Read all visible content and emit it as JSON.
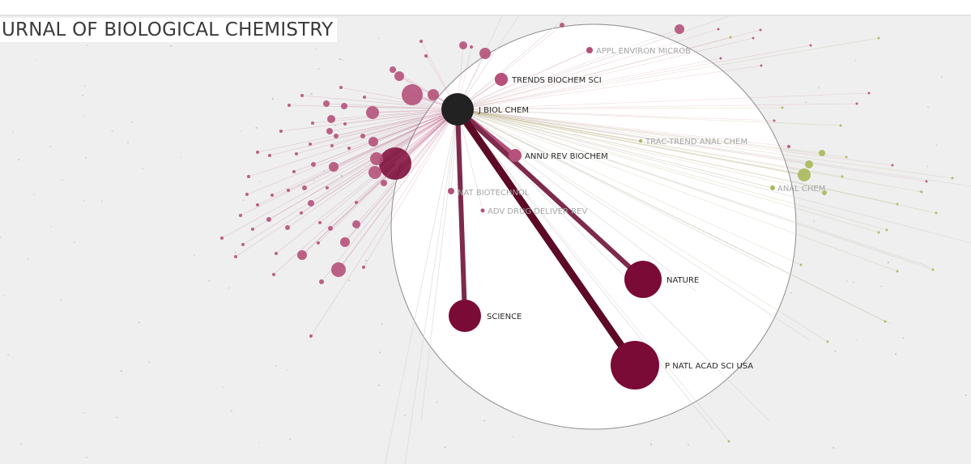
{
  "journal_title": "URNAL OF BIOLOGICAL CHEMISTRY",
  "focus": {
    "label": "J BIOL CHEM",
    "node_name": "focus-node-j-biol-chem",
    "color": "#222222"
  },
  "colors": {
    "citing_cluster": "#b5517a",
    "cited_major": "#7a0a36",
    "chemistry_cluster": "#a8b85a",
    "faint": "#aaaaaa",
    "lens_circle": "#ffffff"
  },
  "labelled_journals": [
    {
      "label": "APPL ENVIRON MICROB",
      "name": "node-appl-environ-microb"
    },
    {
      "label": "TRENDS BIOCHEM SCI",
      "name": "node-trends-biochem-sci"
    },
    {
      "label": "TRAC-TREND ANAL CHEM",
      "name": "node-trac-trend-anal-chem"
    },
    {
      "label": "ANNU REV BIOCHEM",
      "name": "node-annu-rev-biochem"
    },
    {
      "label": "ANAL CHEM",
      "name": "node-anal-chem"
    },
    {
      "label": "NAT BIOTECHNOL",
      "name": "node-nat-biotechnol"
    },
    {
      "label": "ADV DRUG DELIVER REV",
      "name": "node-adv-drug-deliver-rev"
    },
    {
      "label": "NATURE",
      "name": "node-nature"
    },
    {
      "label": "SCIENCE",
      "name": "node-science"
    },
    {
      "label": "P NATL ACAD SCI USA",
      "name": "node-p-natl-acad-sci-usa"
    }
  ]
}
